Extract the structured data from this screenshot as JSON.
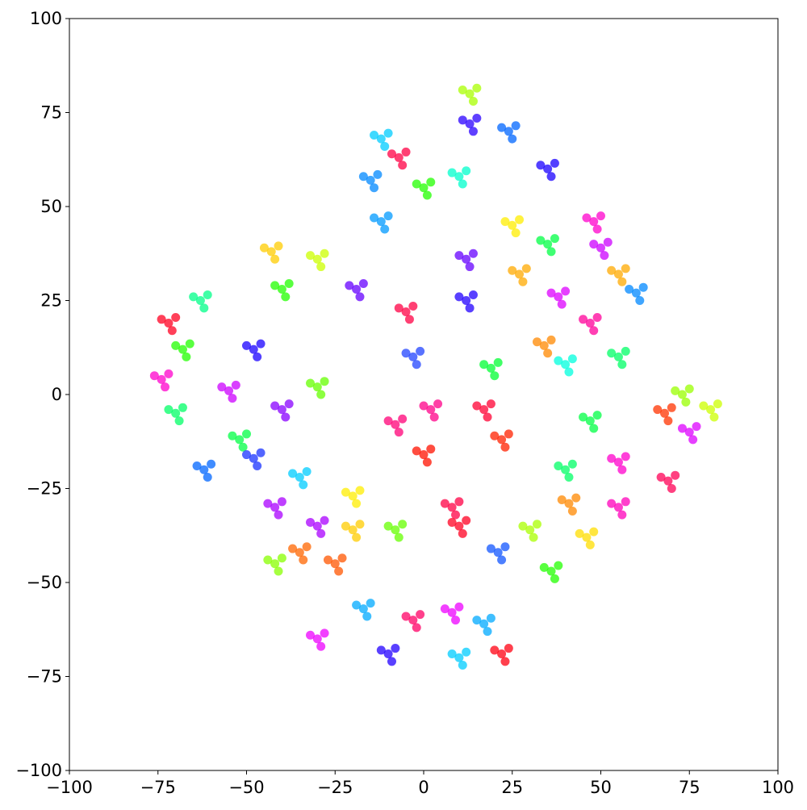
{
  "chart_data": {
    "type": "scatter",
    "xlim": [
      -100,
      100
    ],
    "ylim": [
      -100,
      100
    ],
    "xticks": [
      {
        "value": -100,
        "label": "−100"
      },
      {
        "value": -75,
        "label": "−75"
      },
      {
        "value": -50,
        "label": "−50"
      },
      {
        "value": -25,
        "label": "−25"
      },
      0,
      25,
      50,
      75,
      100
    ],
    "yticks": [
      {
        "value": -100,
        "label": "−100"
      },
      {
        "value": -75,
        "label": "−75"
      },
      {
        "value": -50,
        "label": "−50"
      },
      {
        "value": -25,
        "label": "−25"
      },
      0,
      25,
      50,
      75,
      100
    ],
    "grid": false,
    "series": [
      {
        "color": "#aaff00",
        "x": [
          13,
          15,
          11,
          14
        ],
        "values": [
          80,
          81.5,
          81,
          78
        ]
      },
      {
        "color": "#2a00ff",
        "x": [
          13,
          15,
          11,
          14
        ],
        "values": [
          72,
          73.5,
          73,
          70
        ]
      },
      {
        "color": "#0066ff",
        "x": [
          24,
          26,
          22,
          25
        ],
        "values": [
          70,
          71.5,
          71,
          68
        ]
      },
      {
        "color": "#1a00ff",
        "x": [
          35,
          37,
          33,
          36
        ],
        "values": [
          60,
          61.5,
          61,
          58
        ]
      },
      {
        "color": "#00ffcc",
        "x": [
          10,
          12,
          8,
          11
        ],
        "values": [
          58,
          59.5,
          59,
          56
        ]
      },
      {
        "color": "#ff0044",
        "x": [
          -7,
          -5,
          -9,
          -6
        ],
        "values": [
          63,
          64.5,
          64,
          61
        ]
      },
      {
        "color": "#00ccff",
        "x": [
          -12,
          -10,
          -14,
          -11
        ],
        "values": [
          68,
          69.5,
          69,
          66
        ]
      },
      {
        "color": "#0088ff",
        "x": [
          -15,
          -13,
          -17,
          -14
        ],
        "values": [
          57,
          58.5,
          58,
          55
        ]
      },
      {
        "color": "#0099ff",
        "x": [
          -12,
          -10,
          -14,
          -11
        ],
        "values": [
          46,
          47.5,
          47,
          44
        ]
      },
      {
        "color": "#22ff00",
        "x": [
          0,
          2,
          -2,
          1
        ],
        "values": [
          55,
          56.5,
          56,
          53
        ]
      },
      {
        "color": "#ffee00",
        "x": [
          25,
          27,
          23,
          26
        ],
        "values": [
          45,
          46.5,
          46,
          43
        ]
      },
      {
        "color": "#00ff44",
        "x": [
          35,
          37,
          33,
          36
        ],
        "values": [
          40,
          41.5,
          41,
          38
        ]
      },
      {
        "color": "#ff00cc",
        "x": [
          48,
          50,
          46,
          49
        ],
        "values": [
          46,
          47.5,
          47,
          44
        ]
      },
      {
        "color": "#cc00ff",
        "x": [
          50,
          52,
          48,
          51
        ],
        "values": [
          39,
          40.5,
          40,
          37
        ]
      },
      {
        "color": "#ffaa00",
        "x": [
          55,
          57,
          53,
          56
        ],
        "values": [
          32,
          33.5,
          33,
          30
        ]
      },
      {
        "color": "#0088ff",
        "x": [
          60,
          62,
          58,
          61
        ],
        "values": [
          27,
          28.5,
          28,
          25
        ]
      },
      {
        "color": "#ffaa00",
        "x": [
          27,
          29,
          25,
          28
        ],
        "values": [
          32,
          33.5,
          33,
          30
        ]
      },
      {
        "color": "#6600ff",
        "x": [
          12,
          14,
          10,
          13
        ],
        "values": [
          36,
          37.5,
          37,
          34
        ]
      },
      {
        "color": "#2200ff",
        "x": [
          12,
          14,
          10,
          13
        ],
        "values": [
          25,
          26.5,
          26,
          23
        ]
      },
      {
        "color": "#dd00ff",
        "x": [
          38,
          40,
          36,
          39
        ],
        "values": [
          26,
          27.5,
          27,
          24
        ]
      },
      {
        "color": "#ff0099",
        "x": [
          47,
          49,
          45,
          48
        ],
        "values": [
          19,
          20.5,
          20,
          17
        ]
      },
      {
        "color": "#ff8800",
        "x": [
          34,
          36,
          32,
          35
        ],
        "values": [
          13,
          14.5,
          14,
          11
        ]
      },
      {
        "color": "#00ffdd",
        "x": [
          40,
          42,
          38,
          41
        ],
        "values": [
          8,
          9.5,
          9,
          6
        ]
      },
      {
        "color": "#00ff66",
        "x": [
          55,
          57,
          53,
          56
        ],
        "values": [
          10,
          11.5,
          11,
          8
        ]
      },
      {
        "color": "#00ff44",
        "x": [
          47,
          49,
          45,
          48
        ],
        "values": [
          -7,
          -5.5,
          -6,
          -9
        ]
      },
      {
        "color": "#ffcc00",
        "x": [
          -43,
          -41,
          -45,
          -42
        ],
        "values": [
          38,
          39.5,
          39,
          36
        ]
      },
      {
        "color": "#ccff00",
        "x": [
          -30,
          -28,
          -32,
          -29
        ],
        "values": [
          36,
          37.5,
          37,
          34
        ]
      },
      {
        "color": "#22ff00",
        "x": [
          -40,
          -38,
          -42,
          -39
        ],
        "values": [
          28,
          29.5,
          29,
          26
        ]
      },
      {
        "color": "#6600ff",
        "x": [
          -19,
          -17,
          -21,
          -18
        ],
        "values": [
          28,
          29.5,
          29,
          26
        ]
      },
      {
        "color": "#00ff88",
        "x": [
          -63,
          -61,
          -65,
          -62
        ],
        "values": [
          25,
          26.5,
          26,
          23
        ]
      },
      {
        "color": "#ff0022",
        "x": [
          -72,
          -70,
          -74,
          -71
        ],
        "values": [
          19,
          20.5,
          20,
          17
        ]
      },
      {
        "color": "#22ff00",
        "x": [
          -68,
          -66,
          -70,
          -67
        ],
        "values": [
          12,
          13.5,
          13,
          10
        ]
      },
      {
        "color": "#ff00cc",
        "x": [
          -74,
          -72,
          -76,
          -73
        ],
        "values": [
          4,
          5.5,
          5,
          2
        ]
      },
      {
        "color": "#00ff66",
        "x": [
          -70,
          -68,
          -72,
          -69
        ],
        "values": [
          -5,
          -3.5,
          -4,
          -7
        ]
      },
      {
        "color": "#0066ff",
        "x": [
          -62,
          -60,
          -64,
          -61
        ],
        "values": [
          -20,
          -18.5,
          -19,
          -22
        ]
      },
      {
        "color": "#cc00ff",
        "x": [
          -55,
          -53,
          -57,
          -54
        ],
        "values": [
          1,
          2.5,
          2,
          -1
        ]
      },
      {
        "color": "#1a00ff",
        "x": [
          -48,
          -46,
          -50,
          -47
        ],
        "values": [
          12,
          13.5,
          13,
          10
        ]
      },
      {
        "color": "#ff0044",
        "x": [
          -5,
          -3,
          -7,
          -4
        ],
        "values": [
          22,
          23.5,
          23,
          20
        ]
      },
      {
        "color": "#2244ff",
        "x": [
          -3,
          -1,
          -5,
          -2
        ],
        "values": [
          10,
          11.5,
          11,
          8
        ]
      },
      {
        "color": "#66ff00",
        "x": [
          -30,
          -28,
          -32,
          -29
        ],
        "values": [
          2,
          3.5,
          3,
          0
        ]
      },
      {
        "color": "#8800ff",
        "x": [
          -40,
          -38,
          -42,
          -39
        ],
        "values": [
          -4,
          -2.5,
          -3,
          -6
        ]
      },
      {
        "color": "#00ff44",
        "x": [
          -52,
          -50,
          -54,
          -51
        ],
        "values": [
          -12,
          -10.5,
          -11,
          -14
        ]
      },
      {
        "color": "#00ccff",
        "x": [
          -35,
          -33,
          -37,
          -34
        ],
        "values": [
          -22,
          -20.5,
          -21,
          -24
        ]
      },
      {
        "color": "#1a33ff",
        "x": [
          -48,
          -46,
          -50,
          -47
        ],
        "values": [
          -17,
          -15.5,
          -16,
          -19
        ]
      },
      {
        "color": "#ffee00",
        "x": [
          -20,
          -18,
          -22,
          -19
        ],
        "values": [
          -27,
          -25.5,
          -26,
          -29
        ]
      },
      {
        "color": "#ff0088",
        "x": [
          2,
          4,
          0,
          3
        ],
        "values": [
          -4,
          -2.5,
          -3,
          -6
        ]
      },
      {
        "color": "#ff0077",
        "x": [
          -8,
          -6,
          -10,
          -7
        ],
        "values": [
          -8,
          -6.5,
          -7,
          -10
        ]
      },
      {
        "color": "#ff1100",
        "x": [
          0,
          2,
          -2,
          1
        ],
        "values": [
          -16,
          -14.5,
          -15,
          -18
        ]
      },
      {
        "color": "#ff0033",
        "x": [
          17,
          19,
          15,
          18
        ],
        "values": [
          -4,
          -2.5,
          -3,
          -6
        ]
      },
      {
        "color": "#ff2200",
        "x": [
          22,
          24,
          20,
          23
        ],
        "values": [
          -12,
          -10.5,
          -11,
          -14
        ]
      },
      {
        "color": "#00ff33",
        "x": [
          19,
          21,
          17,
          20
        ],
        "values": [
          7,
          8.5,
          8,
          5
        ]
      },
      {
        "color": "#00ff66",
        "x": [
          40,
          42,
          38,
          41
        ],
        "values": [
          -20,
          -18.5,
          -19,
          -22
        ]
      },
      {
        "color": "#ff8800",
        "x": [
          41,
          43,
          39,
          42
        ],
        "values": [
          -29,
          -27.5,
          -28,
          -31
        ]
      },
      {
        "color": "#ff00cc",
        "x": [
          55,
          57,
          53,
          56
        ],
        "values": [
          -18,
          -16.5,
          -17,
          -20
        ]
      },
      {
        "color": "#ff00bb",
        "x": [
          55,
          57,
          53,
          56
        ],
        "values": [
          -30,
          -28.5,
          -29,
          -32
        ]
      },
      {
        "color": "#ff3300",
        "x": [
          68,
          70,
          66,
          69
        ],
        "values": [
          -5,
          -3.5,
          -4,
          -7
        ]
      },
      {
        "color": "#99ff00",
        "x": [
          73,
          75,
          71,
          74
        ],
        "values": [
          0,
          1.5,
          1,
          -2
        ]
      },
      {
        "color": "#ccff00",
        "x": [
          81,
          83,
          79,
          82
        ],
        "values": [
          -4,
          -2.5,
          -3,
          -6
        ]
      },
      {
        "color": "#dd00ff",
        "x": [
          75,
          77,
          73,
          76
        ],
        "values": [
          -10,
          -8.5,
          -9,
          -12
        ]
      },
      {
        "color": "#ff0055",
        "x": [
          69,
          71,
          67,
          70
        ],
        "values": [
          -23,
          -21.5,
          -22,
          -25
        ]
      },
      {
        "color": "#aa00ff",
        "x": [
          -42,
          -40,
          -44,
          -41
        ],
        "values": [
          -30,
          -28.5,
          -29,
          -32
        ]
      },
      {
        "color": "#aa00ff",
        "x": [
          -30,
          -28,
          -32,
          -29
        ],
        "values": [
          -35,
          -33.5,
          -34,
          -37
        ]
      },
      {
        "color": "#ffcc00",
        "x": [
          -20,
          -18,
          -22,
          -19
        ],
        "values": [
          -36,
          -34.5,
          -35,
          -38
        ]
      },
      {
        "color": "#66ff00",
        "x": [
          -8,
          -6,
          -10,
          -7
        ],
        "values": [
          -36,
          -34.5,
          -35,
          -38
        ]
      },
      {
        "color": "#ff6600",
        "x": [
          -35,
          -33,
          -37,
          -34
        ],
        "values": [
          -42,
          -40.5,
          -41,
          -44
        ]
      },
      {
        "color": "#ff5500",
        "x": [
          -25,
          -23,
          -27,
          -24
        ],
        "values": [
          -45,
          -43.5,
          -44,
          -47
        ]
      },
      {
        "color": "#88ff00",
        "x": [
          -42,
          -40,
          -44,
          -41
        ],
        "values": [
          -45,
          -43.5,
          -44,
          -47
        ]
      },
      {
        "color": "#ff0044",
        "x": [
          8,
          10,
          6,
          9
        ],
        "values": [
          -30,
          -28.5,
          -29,
          -32
        ]
      },
      {
        "color": "#ff0022",
        "x": [
          10,
          12,
          8,
          11
        ],
        "values": [
          -35,
          -33.5,
          -34,
          -37
        ]
      },
      {
        "color": "#1155ff",
        "x": [
          21,
          23,
          19,
          22
        ],
        "values": [
          -42,
          -40.5,
          -41,
          -44
        ]
      },
      {
        "color": "#aaff00",
        "x": [
          30,
          32,
          28,
          31
        ],
        "values": [
          -36,
          -34.5,
          -35,
          -38
        ]
      },
      {
        "color": "#22ff00",
        "x": [
          36,
          38,
          34,
          37
        ],
        "values": [
          -47,
          -45.5,
          -46,
          -49
        ]
      },
      {
        "color": "#ffdd00",
        "x": [
          46,
          48,
          44,
          47
        ],
        "values": [
          -38,
          -36.5,
          -37,
          -40
        ]
      },
      {
        "color": "#00aaff",
        "x": [
          -17,
          -15,
          -19,
          -16
        ],
        "values": [
          -57,
          -55.5,
          -56,
          -59
        ]
      },
      {
        "color": "#2200ff",
        "x": [
          -10,
          -8,
          -12,
          -9
        ],
        "values": [
          -69,
          -67.5,
          -68,
          -71
        ]
      },
      {
        "color": "#ff0066",
        "x": [
          -3,
          -1,
          -5,
          -2
        ],
        "values": [
          -60,
          -58.5,
          -59,
          -62
        ]
      },
      {
        "color": "#ee00ff",
        "x": [
          8,
          10,
          6,
          9
        ],
        "values": [
          -58,
          -56.5,
          -57,
          -60
        ]
      },
      {
        "color": "#00aaff",
        "x": [
          17,
          19,
          15,
          18
        ],
        "values": [
          -61,
          -59.5,
          -60,
          -63
        ]
      },
      {
        "color": "#00ccff",
        "x": [
          10,
          12,
          8,
          11
        ],
        "values": [
          -70,
          -68.5,
          -69,
          -72
        ]
      },
      {
        "color": "#ff0011",
        "x": [
          22,
          24,
          20,
          23
        ],
        "values": [
          -69,
          -67.5,
          -68,
          -71
        ]
      },
      {
        "color": "#ee00ff",
        "x": [
          -30,
          -28,
          -32,
          -29
        ],
        "values": [
          -65,
          -63.5,
          -64,
          -67
        ]
      }
    ]
  }
}
